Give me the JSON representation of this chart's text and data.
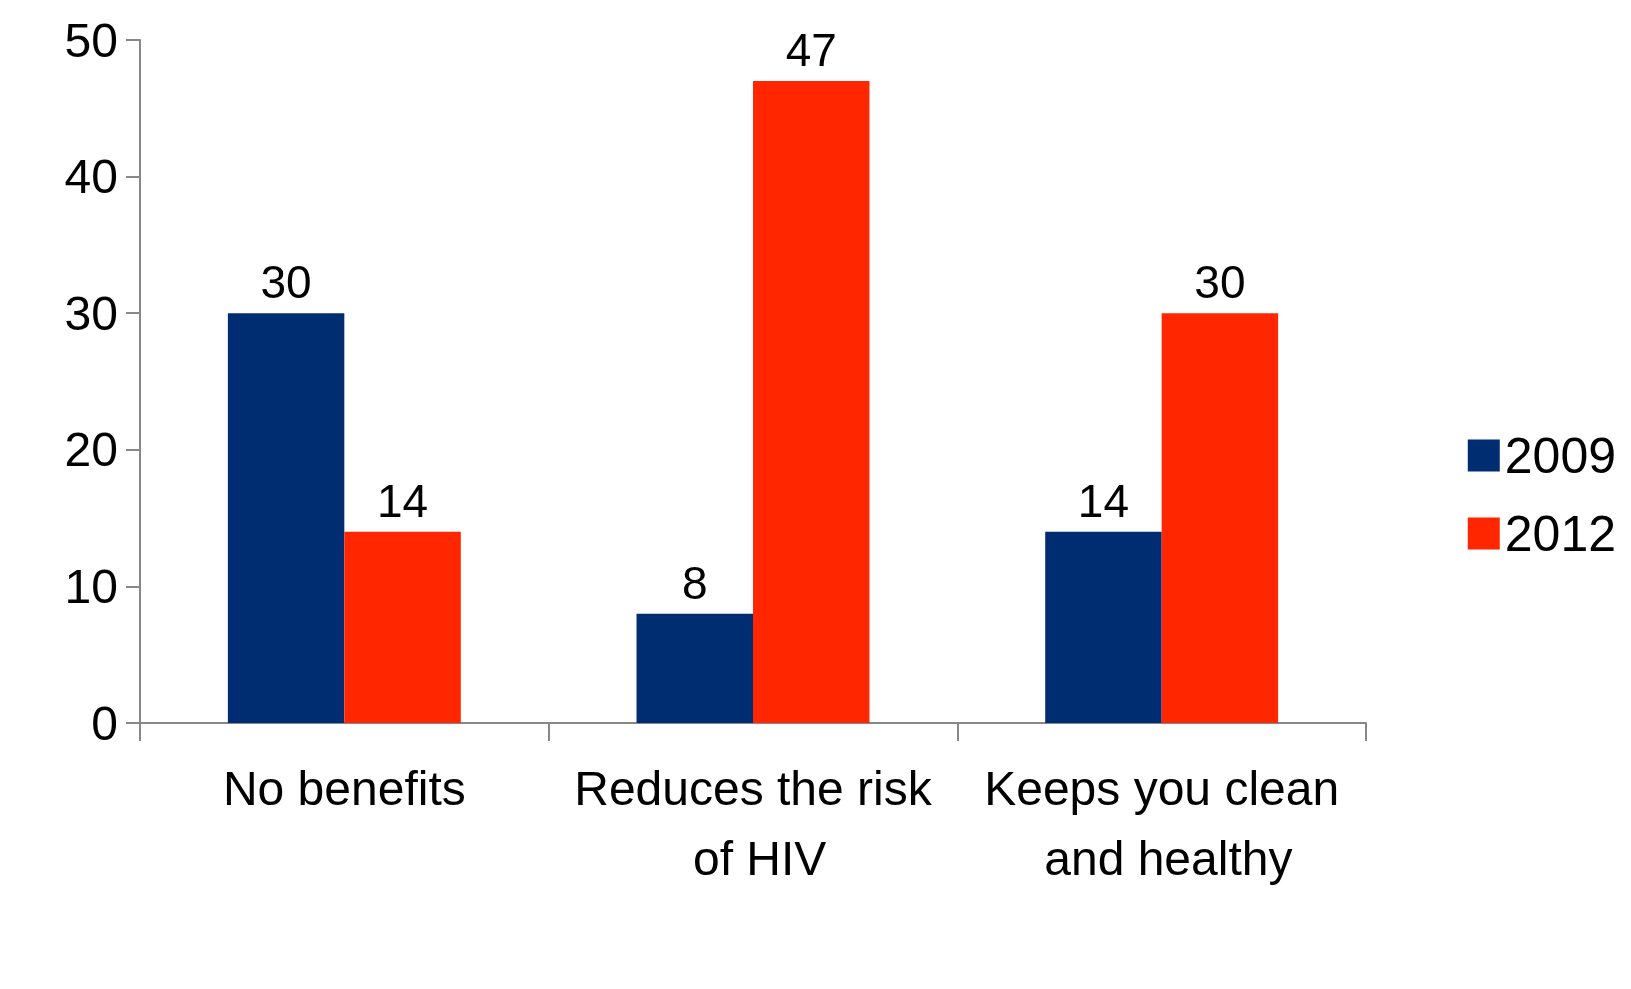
{
  "chart_data": {
    "type": "bar",
    "categories": [
      "No benefits",
      "Reduces the risk of HIV",
      "Keeps you clean and healthy"
    ],
    "series": [
      {
        "name": "2009",
        "color": "#002d72",
        "values": [
          30,
          8,
          14
        ]
      },
      {
        "name": "2012",
        "color": "#ff2600",
        "values": [
          14,
          47,
          30
        ]
      }
    ],
    "ylim": [
      0,
      50
    ],
    "yticks": [
      0,
      10,
      20,
      30,
      40,
      50
    ],
    "grid": false,
    "legend": "right",
    "data_labels": true
  }
}
